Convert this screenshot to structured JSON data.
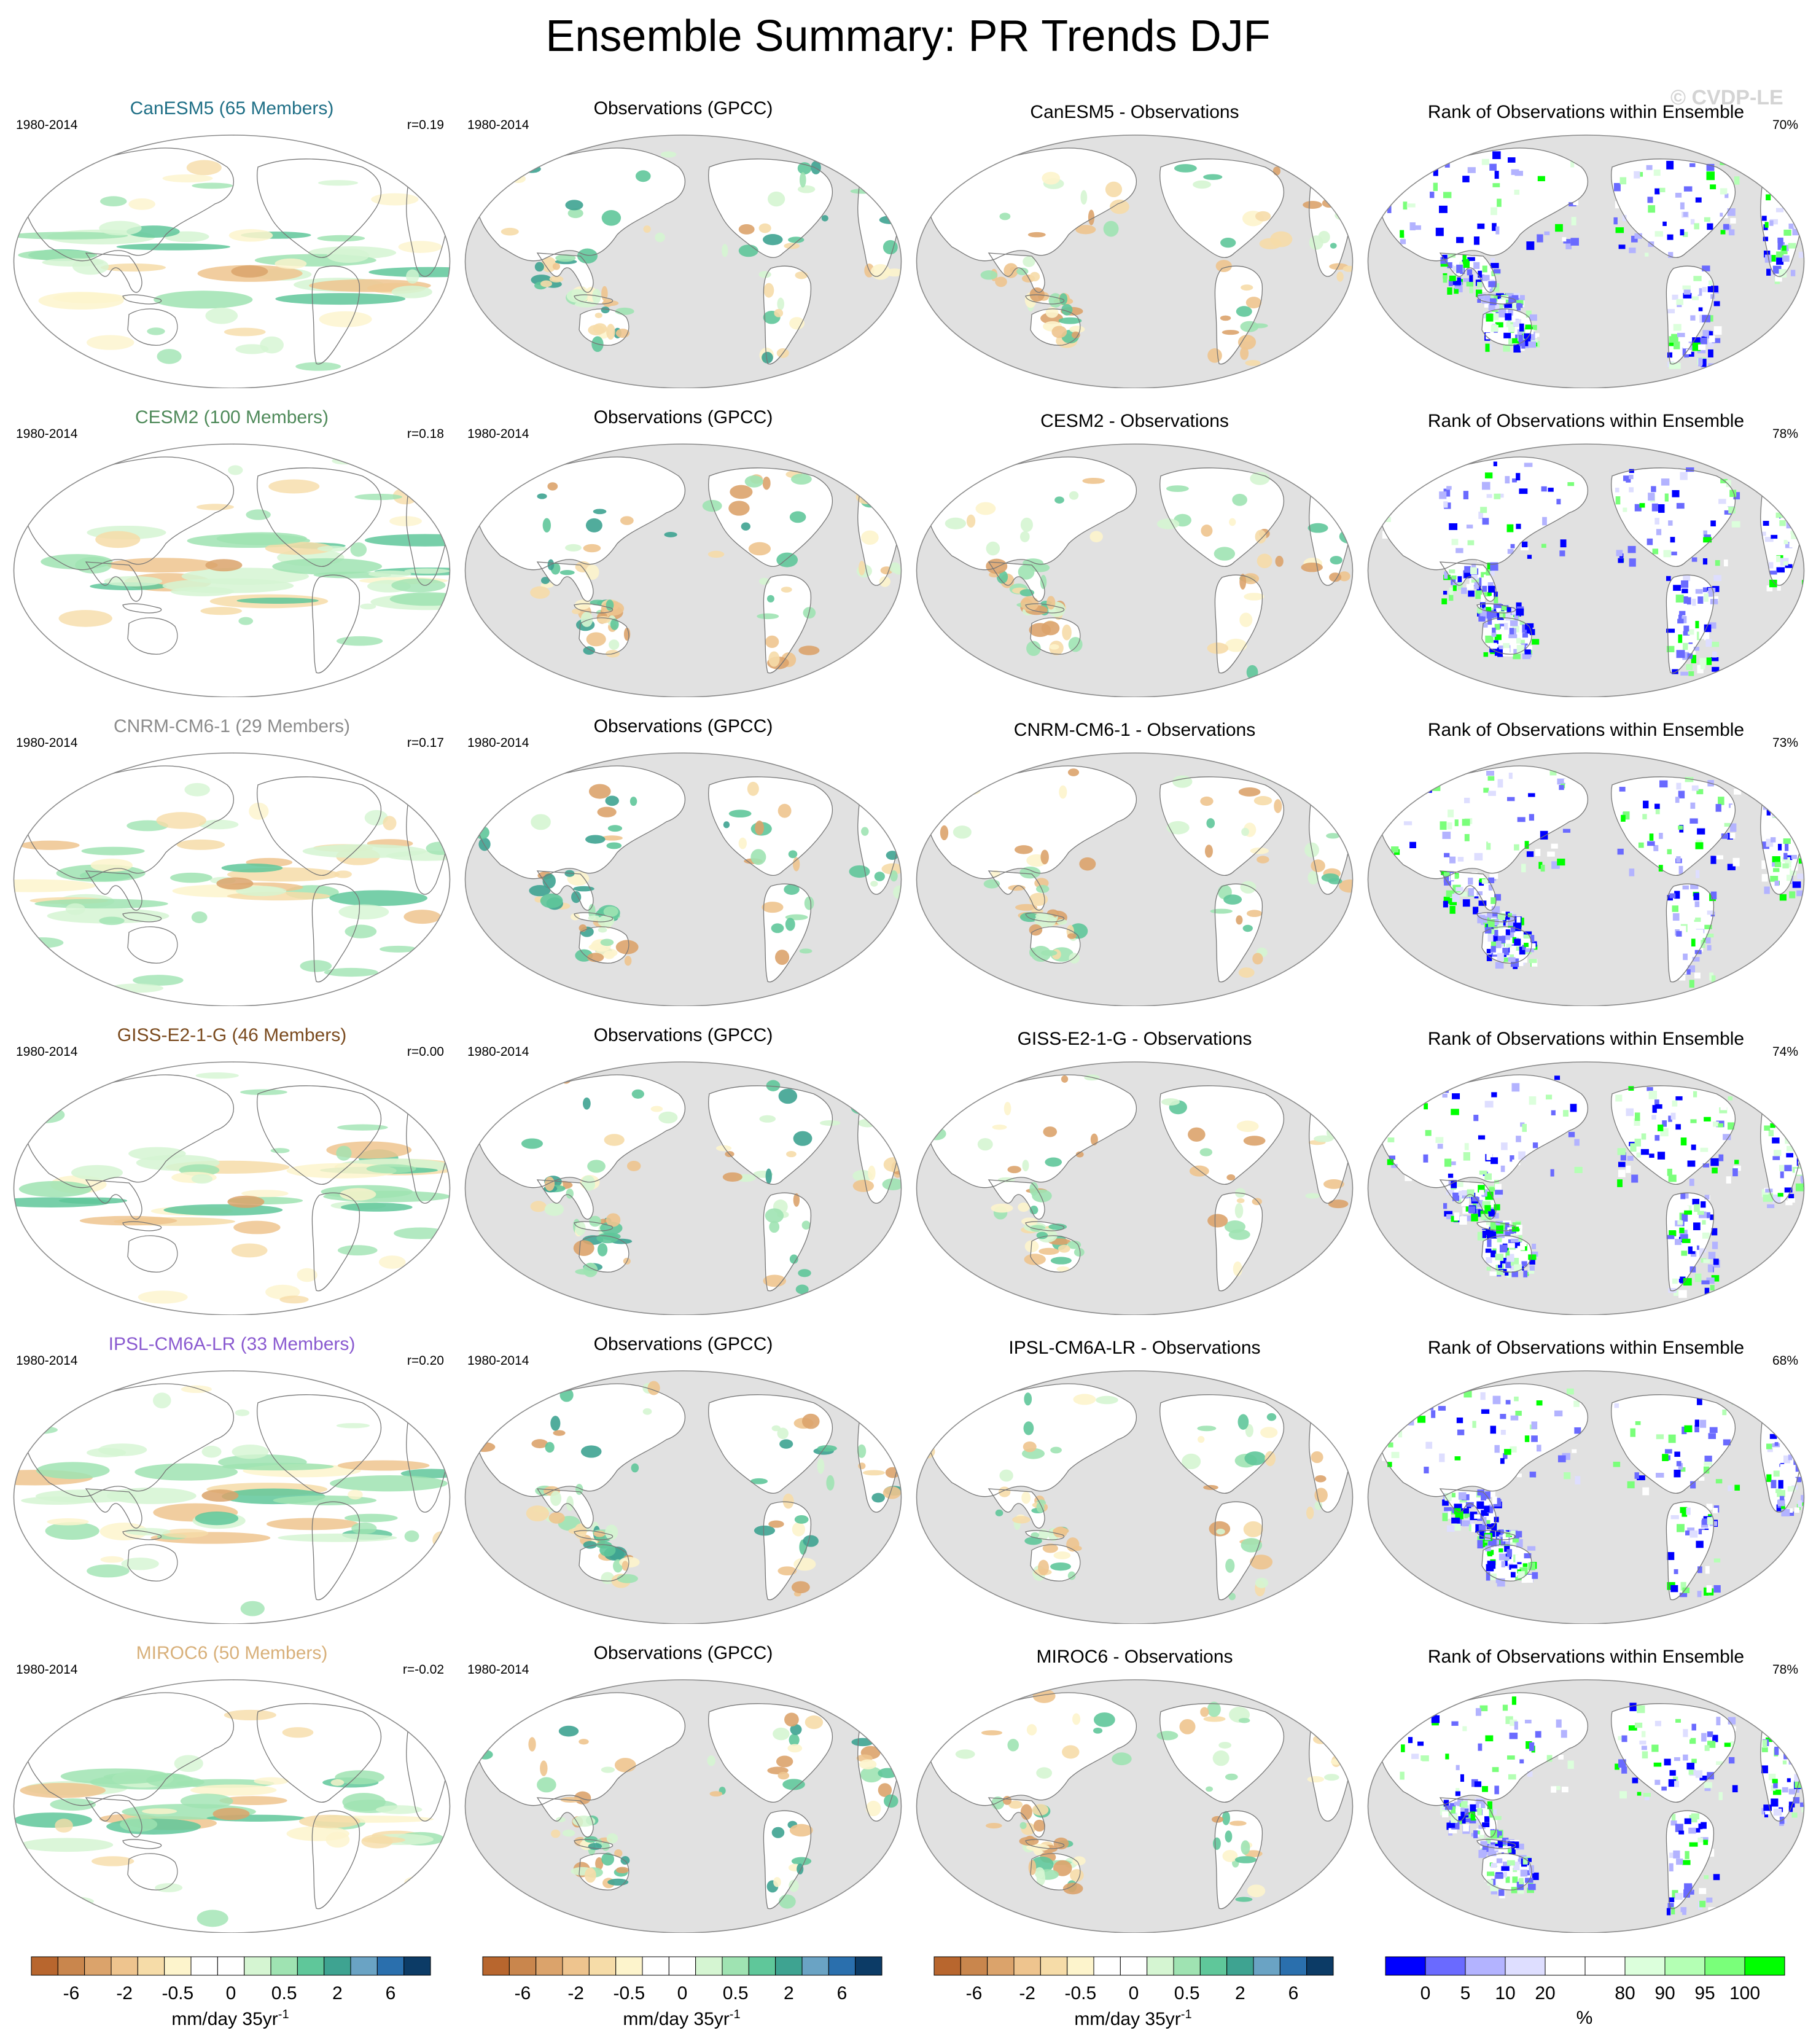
{
  "title": "Ensemble Summary: PR Trends DJF",
  "watermark": "© CVDP-LE",
  "colors": {
    "ocean_gray": "#e1e1e1",
    "map_outline": "#777777",
    "trend_scale": [
      "#b8662e",
      "#c9864d",
      "#dba36b",
      "#eec48e",
      "#f6dca8",
      "#fdf4cc",
      "#ffffff",
      "#ffffff",
      "#d5f5d2",
      "#9fe3b2",
      "#5fc79a",
      "#3ea391",
      "#6aa3c4",
      "#2a6fad",
      "#0c3b66"
    ],
    "rank_scale": [
      "#0000ff",
      "#6a6aff",
      "#b3b3ff",
      "#dedeff",
      "#ffffff",
      "#ffffff",
      "#dcffdc",
      "#b4ffb4",
      "#7aff7a",
      "#00ff00"
    ]
  },
  "rows": [
    {
      "model": "CanESM5 (65 Members)",
      "model_color": "#1f6f86",
      "period": "1980-2014",
      "r": "r=0.19",
      "obs_title": "Observations (GPCC)",
      "diff_title": "CanESM5 - Observations",
      "rank_title": "Rank of Observations within Ensemble",
      "rank_pct": "70%"
    },
    {
      "model": "CESM2 (100 Members)",
      "model_color": "#4f8a5a",
      "period": "1980-2014",
      "r": "r=0.18",
      "obs_title": "Observations (GPCC)",
      "diff_title": "CESM2 - Observations",
      "rank_title": "Rank of Observations within Ensemble",
      "rank_pct": "78%"
    },
    {
      "model": "CNRM-CM6-1 (29 Members)",
      "model_color": "#8c8c8c",
      "period": "1980-2014",
      "r": "r=0.17",
      "obs_title": "Observations (GPCC)",
      "diff_title": "CNRM-CM6-1 - Observations",
      "rank_title": "Rank of Observations within Ensemble",
      "rank_pct": "73%"
    },
    {
      "model": "GISS-E2-1-G (46 Members)",
      "model_color": "#7a4a1e",
      "period": "1980-2014",
      "r": "r=0.00",
      "obs_title": "Observations (GPCC)",
      "diff_title": "GISS-E2-1-G - Observations",
      "rank_title": "Rank of Observations within Ensemble",
      "rank_pct": "74%"
    },
    {
      "model": "IPSL-CM6A-LR (33 Members)",
      "model_color": "#8a5ad0",
      "period": "1980-2014",
      "r": "r=0.20",
      "obs_title": "Observations (GPCC)",
      "diff_title": "IPSL-CM6A-LR - Observations",
      "rank_title": "Rank of Observations within Ensemble",
      "rank_pct": "68%"
    },
    {
      "model": "MIROC6 (50 Members)",
      "model_color": "#d8b07a",
      "period": "1980-2014",
      "r": "r=-0.02",
      "obs_title": "Observations (GPCC)",
      "diff_title": "MIROC6 - Observations",
      "rank_title": "Rank of Observations within Ensemble",
      "rank_pct": "78%"
    }
  ],
  "colorbars": {
    "trend_ticks": [
      "-6",
      "-2",
      "-0.5",
      "0",
      "0.5",
      "2",
      "6"
    ],
    "trend_unit": "mm/day 35yr",
    "trend_unit_sup": "-1",
    "rank_ticks": [
      "0",
      "5",
      "10",
      "20",
      "80",
      "90",
      "95",
      "100"
    ],
    "rank_unit": "%"
  }
}
